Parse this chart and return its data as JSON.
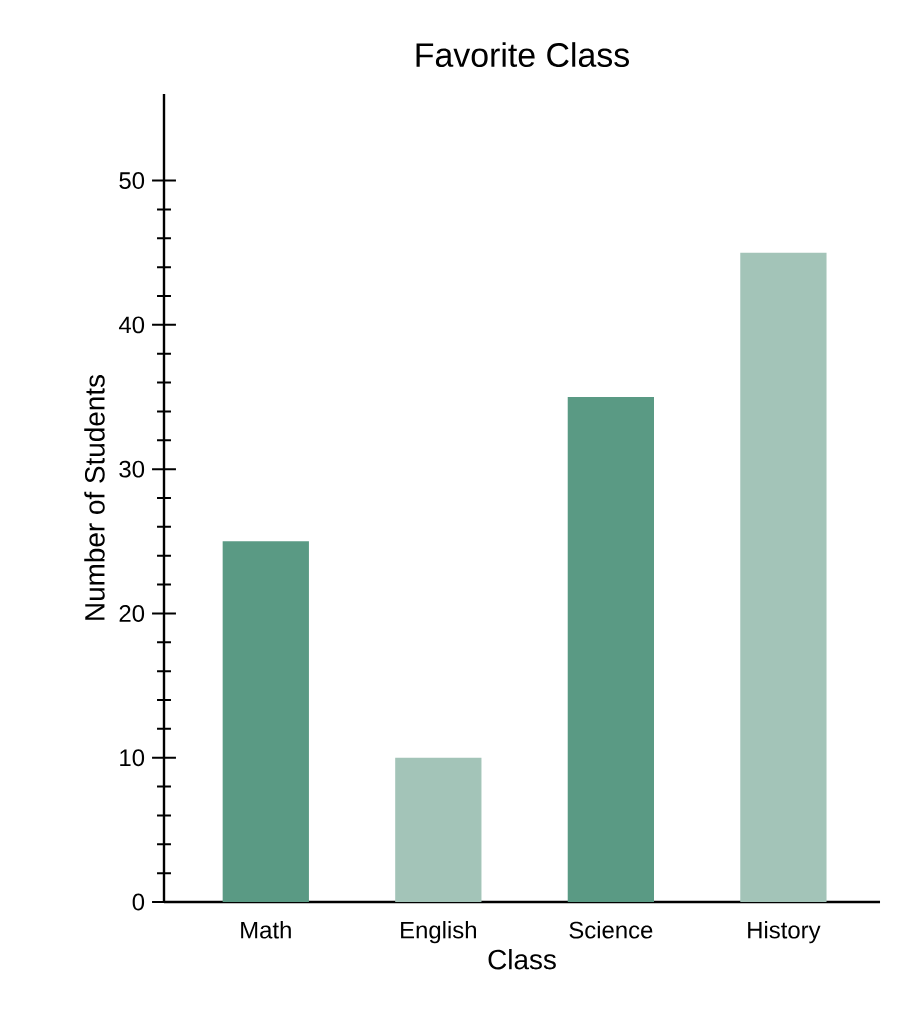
{
  "chart_data": {
    "type": "bar",
    "title": "Favorite Class",
    "xlabel": "Class",
    "ylabel": "Number of Students",
    "categories": [
      "Math",
      "English",
      "Science",
      "History"
    ],
    "values": [
      25,
      10,
      35,
      45
    ],
    "colors": [
      "#5a9a84",
      "#a3c4b8",
      "#5a9a84",
      "#a3c4b8"
    ],
    "ylim": [
      0,
      56
    ],
    "yticks": [
      0,
      10,
      20,
      30,
      40,
      50
    ],
    "grid": false
  }
}
